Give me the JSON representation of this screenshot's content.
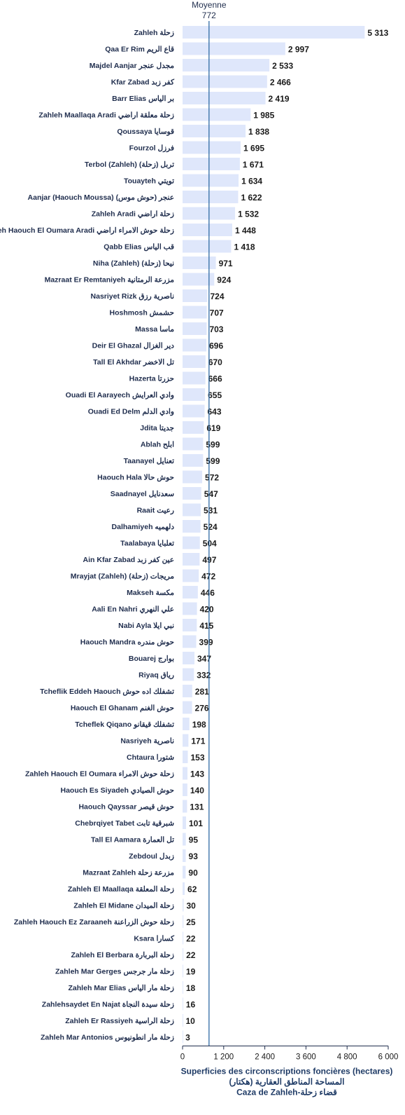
{
  "colors": {
    "bar": "#dfe7fb",
    "mean_line": "#2f6aa3",
    "axis": "#1f2d4d",
    "text": "#1f2d4d"
  },
  "chart_data": {
    "type": "bar",
    "orientation": "horizontal",
    "categories": [
      "Zahleh زحلة",
      "Qaa Er Rim قاع الريم",
      "Majdel Aanjar مجدل عنجر",
      "Kfar Zabad كفر زبد",
      "Barr Elias بر الياس",
      "Zahleh Maallaqa Aradi زحلة معلقة اراضي",
      "Qoussaya قوسايا",
      "Fourzol فرزل",
      "Terbol (Zahleh) تربل (زحلة)",
      "Touayteh تويتي",
      "Aanjar (Haouch Moussa) عنجر (حوش موس)",
      "Zahleh Aradi زحلة اراضي",
      "Zahleh Haouch El Oumara Aradi زحلة حوش الامراء اراضي",
      "Qabb Elias قب الياس",
      "Niha (Zahleh) نيحا (زحلة)",
      "Mazraat Er Remtaniyeh مزرعة الرمتانية",
      "Nasriyet Rizk ناصرية رزق",
      "Hoshmosh حشمش",
      "Massa ماسا",
      "Deir El Ghazal دير الغزال",
      "Tall El Akhdar تل الاخضر",
      "Hazerta حزرتا",
      "Ouadi El Aarayech وادي العرايش",
      "Ouadi Ed Delm وادي الدلم",
      "Jdita جديتا",
      "Ablah ابلح",
      "Taanayel تعنايل",
      "Haouch Hala حوش حالا",
      "Saadnayel سعدنايل",
      "Raait رعيت",
      "Dalhamiyeh دلهميه",
      "Taalabaya تعلبايا",
      "Ain Kfar Zabad عين كفر زبد",
      "Mrayjat (Zahleh) مريجات (زحلة)",
      "Makseh مكسة",
      "Aali En Nahri علي النهري",
      "Nabi Ayla نبي ايلا",
      "Haouch Mandra حوش مندره",
      "Bouarej بوارج",
      "Riyaq رياق",
      "Tcheflik Eddeh Haouch تشفلك اده حوش",
      "Haouch El Ghanam حوش الغنم",
      "Tcheflek Qiqano تشفلك قيقانو",
      "Nasriyeh ناصرية",
      "Chtaura شتورا",
      "Zahleh Haouch El Oumara زحلة حوش الامراء",
      "Haouch Es Siyadeh حوش الصيادي",
      "Haouch Qayssar حوش قيصر",
      "Chebrqiyet Tabet شبرقية تابت",
      "Tall El Aamara تل العمارة",
      "Zebdoul زبدل",
      "Mazraat Zahleh مزرعة زحلة",
      "Zahleh El Maallaqa زحلة المعلقة",
      "Zahleh El Midane زحلة الميدان",
      "Zahleh Haouch Ez Zaraaneh زحلة حوش الزراعنة",
      "Ksara كسارا",
      "Zahleh El Berbara زحلة البربارة",
      "Zahleh Mar Gerges زحلة مار جرجس",
      "Zahleh Mar Elias زحلة مار الياس",
      "Zahlehsaydet En Najat زحلة سيدة النجاة",
      "Zahleh Er Rassiyeh زحلة الراسية",
      "Zahleh Mar Antonios زحلة مار انطونيوس"
    ],
    "values": [
      5313,
      2997,
      2533,
      2466,
      2419,
      1985,
      1838,
      1695,
      1671,
      1634,
      1622,
      1532,
      1448,
      1418,
      971,
      924,
      724,
      707,
      703,
      696,
      670,
      666,
      655,
      643,
      619,
      599,
      599,
      572,
      547,
      531,
      524,
      504,
      497,
      472,
      446,
      420,
      415,
      399,
      347,
      332,
      281,
      276,
      198,
      171,
      153,
      143,
      140,
      131,
      101,
      95,
      93,
      90,
      62,
      30,
      25,
      22,
      22,
      19,
      18,
      16,
      10,
      3
    ],
    "value_labels": [
      "5 313",
      "2 997",
      "2 533",
      "2 466",
      "2 419",
      "1 985",
      "1 838",
      "1 695",
      "1 671",
      "1 634",
      "1 622",
      "1 532",
      "1 448",
      "1 418",
      "971",
      "924",
      "724",
      "707",
      "703",
      "696",
      "670",
      "666",
      "655",
      "643",
      "619",
      "599",
      "599",
      "572",
      "547",
      "531",
      "524",
      "504",
      "497",
      "472",
      "446",
      "420",
      "415",
      "399",
      "347",
      "332",
      "281",
      "276",
      "198",
      "171",
      "153",
      "143",
      "140",
      "131",
      "101",
      "95",
      "93",
      "90",
      "62",
      "30",
      "25",
      "22",
      "22",
      "19",
      "18",
      "16",
      "10",
      "3"
    ],
    "xlim": [
      0,
      6000
    ],
    "xticks": [
      0,
      1200,
      2400,
      3600,
      4800,
      6000
    ],
    "xtick_labels": [
      "0",
      "1 200",
      "2 400",
      "3 600",
      "4 800",
      "6 000"
    ],
    "mean": {
      "label": "Moyenne",
      "value": 772,
      "value_label": "772"
    },
    "xlabel_lines": [
      "Superficies des circonscriptions foncières (hectares)",
      "المساحة المناطق العقارية (هكتار)",
      "Caza de Zahleh-قضاء زحلة"
    ],
    "grid": false
  }
}
